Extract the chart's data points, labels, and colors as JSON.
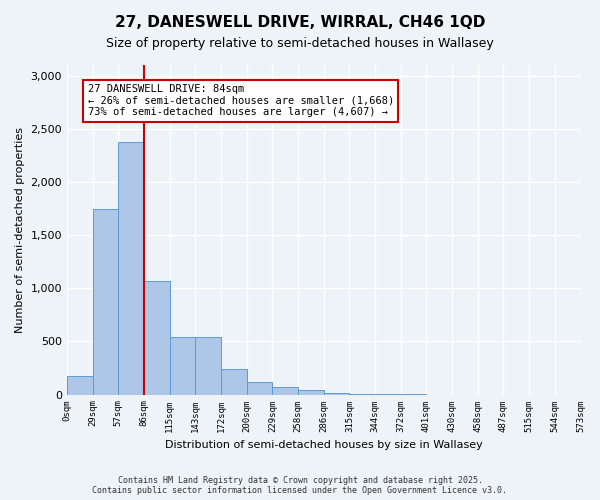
{
  "title": "27, DANESWELL DRIVE, WIRRAL, CH46 1QD",
  "subtitle": "Size of property relative to semi-detached houses in Wallasey",
  "xlabel": "Distribution of semi-detached houses by size in Wallasey",
  "ylabel": "Number of semi-detached properties",
  "bar_values": [
    175,
    1750,
    2380,
    1070,
    545,
    545,
    240,
    120,
    70,
    40,
    15,
    5,
    2,
    1,
    0,
    0,
    0,
    0,
    0,
    0
  ],
  "bin_labels": [
    "0sqm",
    "29sqm",
    "57sqm",
    "86sqm",
    "115sqm",
    "143sqm",
    "172sqm",
    "200sqm",
    "229sqm",
    "258sqm",
    "286sqm",
    "315sqm",
    "344sqm",
    "372sqm",
    "401sqm",
    "430sqm",
    "458sqm",
    "487sqm",
    "515sqm",
    "544sqm",
    "573sqm"
  ],
  "bar_color": "#aec6e8",
  "bar_edge_color": "#5b9bd5",
  "vline_color": "#cc0000",
  "annotation_text": "27 DANESWELL DRIVE: 84sqm\n← 26% of semi-detached houses are smaller (1,668)\n73% of semi-detached houses are larger (4,607) →",
  "annotation_box_color": "#ffffff",
  "annotation_box_edge": "#cc0000",
  "ylim": [
    0,
    3100
  ],
  "yticks": [
    0,
    500,
    1000,
    1500,
    2000,
    2500,
    3000
  ],
  "footer_text": "Contains HM Land Registry data © Crown copyright and database right 2025.\nContains public sector information licensed under the Open Government Licence v3.0.",
  "background_color": "#eef3f8",
  "plot_bg_color": "#eef3f8",
  "grid_color": "#ffffff"
}
